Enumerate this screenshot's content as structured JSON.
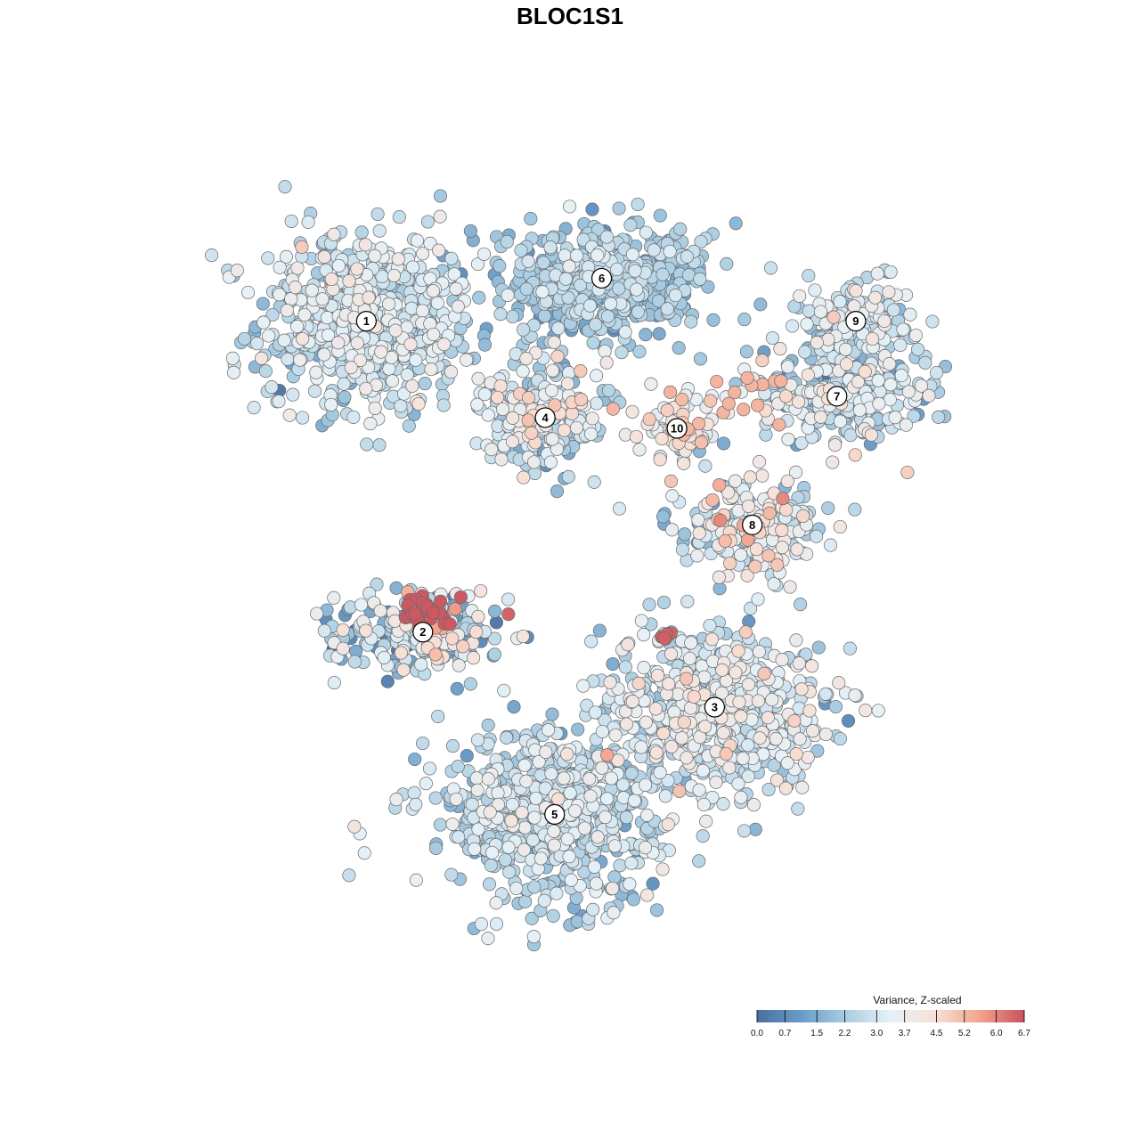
{
  "chart_data": {
    "type": "scatter",
    "title": "BLOC1S1",
    "xlabel": "",
    "ylabel": "",
    "grid": false,
    "colorbar": {
      "title": "Variance, Z-scaled",
      "ticks": [
        "0.0",
        "0.7",
        "1.5",
        "2.2",
        "3.0",
        "3.7",
        "4.5",
        "5.2",
        "6.0",
        "6.7"
      ],
      "min": 0.0,
      "max": 6.7,
      "colors": [
        "#4a6f9e",
        "#6a9cc9",
        "#a9cde2",
        "#e6f1f7",
        "#f7e0d6",
        "#f3a58c",
        "#c8505e"
      ],
      "placement": "bottom-right"
    },
    "clusters": [
      {
        "label": "1",
        "x": -12.0,
        "y": 10.5,
        "sx": 5.2,
        "sy": 3.8,
        "n": 700,
        "mean": 2.8,
        "sd": 0.6
      },
      {
        "label": "2",
        "x": -9.0,
        "y": -4.0,
        "sx": 4.2,
        "sy": 1.8,
        "n": 260,
        "mean": 2.6,
        "sd": 1.2
      },
      {
        "label": "3",
        "x": 6.5,
        "y": -7.5,
        "sx": 5.5,
        "sy": 3.5,
        "n": 650,
        "mean": 3.0,
        "sd": 0.7
      },
      {
        "label": "4",
        "x": -2.5,
        "y": 6.0,
        "sx": 3.0,
        "sy": 2.5,
        "n": 260,
        "mean": 2.9,
        "sd": 0.9
      },
      {
        "label": "5",
        "x": -2.0,
        "y": -12.5,
        "sx": 5.5,
        "sy": 3.5,
        "n": 650,
        "mean": 2.6,
        "sd": 0.6
      },
      {
        "label": "6",
        "x": 0.5,
        "y": 12.5,
        "sx": 5.0,
        "sy": 2.5,
        "n": 480,
        "mean": 2.2,
        "sd": 0.5
      },
      {
        "label": "7",
        "x": 13.0,
        "y": 7.0,
        "sx": 4.5,
        "sy": 2.0,
        "n": 280,
        "mean": 2.8,
        "sd": 0.9
      },
      {
        "label": "8",
        "x": 8.5,
        "y": 1.0,
        "sx": 3.5,
        "sy": 1.8,
        "n": 220,
        "mean": 3.2,
        "sd": 1.0
      },
      {
        "label": "9",
        "x": 14.0,
        "y": 10.5,
        "sx": 2.8,
        "sy": 1.8,
        "n": 160,
        "mean": 2.8,
        "sd": 0.7
      },
      {
        "label": "10",
        "x": 4.5,
        "y": 5.5,
        "sx": 1.8,
        "sy": 1.8,
        "n": 70,
        "mean": 4.0,
        "sd": 0.8
      }
    ],
    "highlight_groups": [
      {
        "near_cluster": "2",
        "x": -8.8,
        "y": -3.0,
        "sx": 1.4,
        "sy": 0.6,
        "n": 35,
        "value": 6.6
      },
      {
        "near_cluster": "3",
        "x": 3.8,
        "y": -4.2,
        "sx": 0.3,
        "sy": 0.3,
        "n": 6,
        "value": 6.5
      },
      {
        "near_cluster": "7",
        "x": 8.5,
        "y": 7.0,
        "sx": 2.0,
        "sy": 1.0,
        "n": 12,
        "value": 5.3
      }
    ],
    "xlim": [
      -22,
      22
    ],
    "ylim": [
      -20,
      18
    ]
  }
}
